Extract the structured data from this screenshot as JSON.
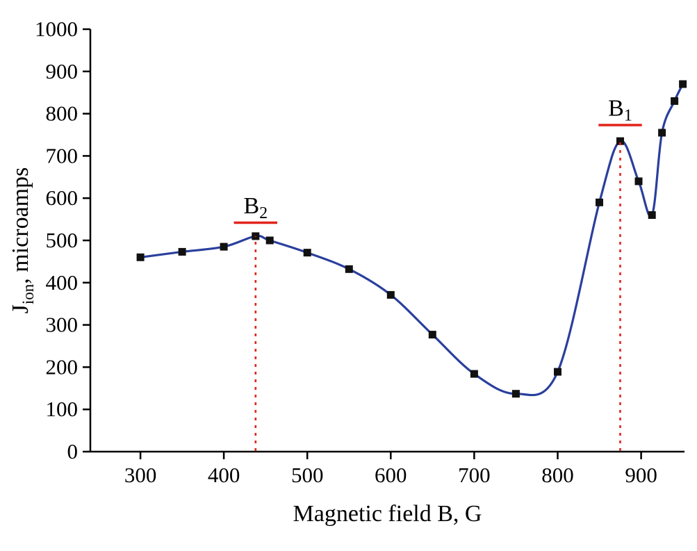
{
  "figure": {
    "background": "#ffffff"
  },
  "chart_data": {
    "type": "line",
    "title": "",
    "xlabel": "Magnetic field B, G",
    "ylabel": {
      "main": "J",
      "sub": "ion",
      "rest": ", microamps"
    },
    "xlim": [
      240,
      952
    ],
    "ylim": [
      0,
      1000
    ],
    "x_ticks": [
      300,
      400,
      500,
      600,
      700,
      800,
      900
    ],
    "y_ticks": [
      0,
      100,
      200,
      300,
      400,
      500,
      600,
      700,
      800,
      900,
      1000
    ],
    "grid": false,
    "legend": false,
    "series": [
      {
        "name": "J_ion",
        "line_color": "#2a3f9d",
        "marker": "square",
        "marker_color": "#111111",
        "points": [
          [
            300,
            460
          ],
          [
            350,
            473
          ],
          [
            400,
            485
          ],
          [
            438,
            510
          ],
          [
            455,
            500
          ],
          [
            500,
            471
          ],
          [
            550,
            432
          ],
          [
            600,
            371
          ],
          [
            650,
            277
          ],
          [
            700,
            184
          ],
          [
            750,
            137
          ],
          [
            800,
            189
          ],
          [
            850,
            590
          ],
          [
            875,
            735
          ],
          [
            897,
            640
          ],
          [
            913,
            560
          ],
          [
            925,
            755
          ],
          [
            940,
            830
          ],
          [
            950,
            870
          ]
        ]
      }
    ],
    "annotations": [
      {
        "id": "b1",
        "label_main": "B",
        "label_sub": "1",
        "x": 875,
        "line_top": 735,
        "bar_y": 773,
        "bar_half_width": 26,
        "label_y": 795,
        "color": "#e2231a"
      },
      {
        "id": "b2",
        "label_main": "B",
        "label_sub": "2",
        "x": 438,
        "line_top": 510,
        "bar_y": 542,
        "bar_half_width": 26,
        "label_y": 564,
        "color": "#e2231a"
      }
    ]
  }
}
